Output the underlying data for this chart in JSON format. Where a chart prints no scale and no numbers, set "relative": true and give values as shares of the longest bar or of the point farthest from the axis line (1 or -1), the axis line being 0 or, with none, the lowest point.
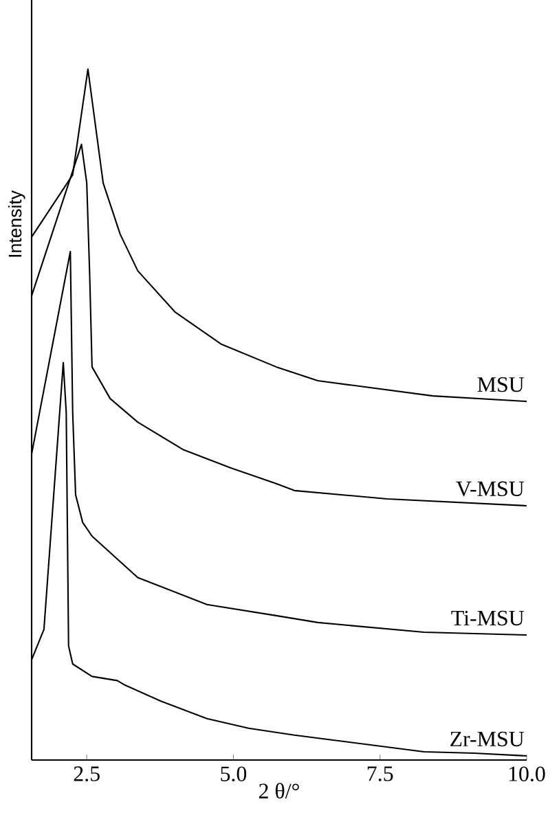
{
  "chart_data": {
    "type": "line",
    "xlabel": "2 θ/°",
    "ylabel": "Intensity",
    "relative": true,
    "legend": false,
    "marker": "none",
    "line_style": "solid",
    "xlim": [
      1.56,
      10.0
    ],
    "xticks": [
      {
        "value": 2.5,
        "label": "2.5"
      },
      {
        "value": 5.0,
        "label": "5.0"
      },
      {
        "value": 7.5,
        "label": "7.5"
      },
      {
        "value": 10.0,
        "label": "10.0"
      }
    ],
    "series": [
      {
        "name": "MSU",
        "color": "#000000",
        "x": [
          1.56,
          2.26,
          2.52,
          2.78,
          3.07,
          3.37,
          4.01,
          4.79,
          5.73,
          6.44,
          8.4,
          10.0
        ],
        "values": [
          0.757,
          0.847,
          1.0,
          0.835,
          0.761,
          0.708,
          0.648,
          0.602,
          0.569,
          0.549,
          0.527,
          0.519
        ]
      },
      {
        "name": "V-MSU",
        "color": "#000000",
        "x": [
          1.56,
          2.41,
          2.5,
          2.55,
          2.59,
          2.9,
          3.37,
          4.15,
          4.95,
          5.73,
          6.04,
          7.62,
          10.0
        ],
        "values": [
          0.672,
          0.891,
          0.835,
          0.702,
          0.569,
          0.523,
          0.489,
          0.449,
          0.423,
          0.4,
          0.39,
          0.378,
          0.368
        ]
      },
      {
        "name": "Ti-MSU",
        "color": "#000000",
        "x": [
          1.56,
          2.22,
          2.26,
          2.31,
          2.43,
          2.59,
          3.37,
          4.55,
          5.73,
          6.44,
          8.25,
          10.0
        ],
        "values": [
          0.443,
          0.736,
          0.503,
          0.384,
          0.344,
          0.324,
          0.264,
          0.225,
          0.209,
          0.199,
          0.185,
          0.181
        ]
      },
      {
        "name": "Zr-MSU",
        "color": "#000000",
        "x": [
          1.56,
          1.77,
          2.1,
          2.15,
          2.19,
          2.26,
          2.59,
          3.02,
          3.14,
          3.77,
          4.55,
          5.26,
          6.04,
          8.25,
          9.1,
          10.0
        ],
        "values": [
          0.145,
          0.189,
          0.575,
          0.503,
          0.165,
          0.139,
          0.121,
          0.115,
          0.109,
          0.085,
          0.06,
          0.046,
          0.036,
          0.012,
          0.01,
          0.006
        ]
      }
    ]
  }
}
